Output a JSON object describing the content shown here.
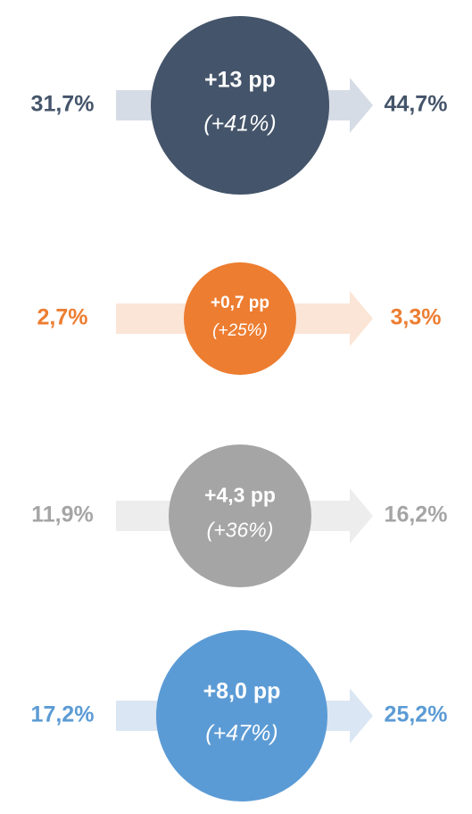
{
  "rows": [
    {
      "from": "31,7%",
      "change": "+13 pp",
      "relative": "(+41%)",
      "to": "44,7%",
      "color": "#44546a",
      "light": "#d6dce5"
    },
    {
      "from": "2,7%",
      "change": "+0,7 pp",
      "relative": "(+25%)",
      "to": "3,3%",
      "color": "#ed7d31",
      "light": "#fbe5d6"
    },
    {
      "from": "11,9%",
      "change": "+4,3 pp",
      "relative": "(+36%)",
      "to": "16,2%",
      "color": "#a5a5a5",
      "light": "#ededed"
    },
    {
      "from": "17,2%",
      "change": "+8,0 pp",
      "relative": "(+47%)",
      "to": "25,2%",
      "color": "#5b9bd5",
      "light": "#dae6f3"
    }
  ]
}
